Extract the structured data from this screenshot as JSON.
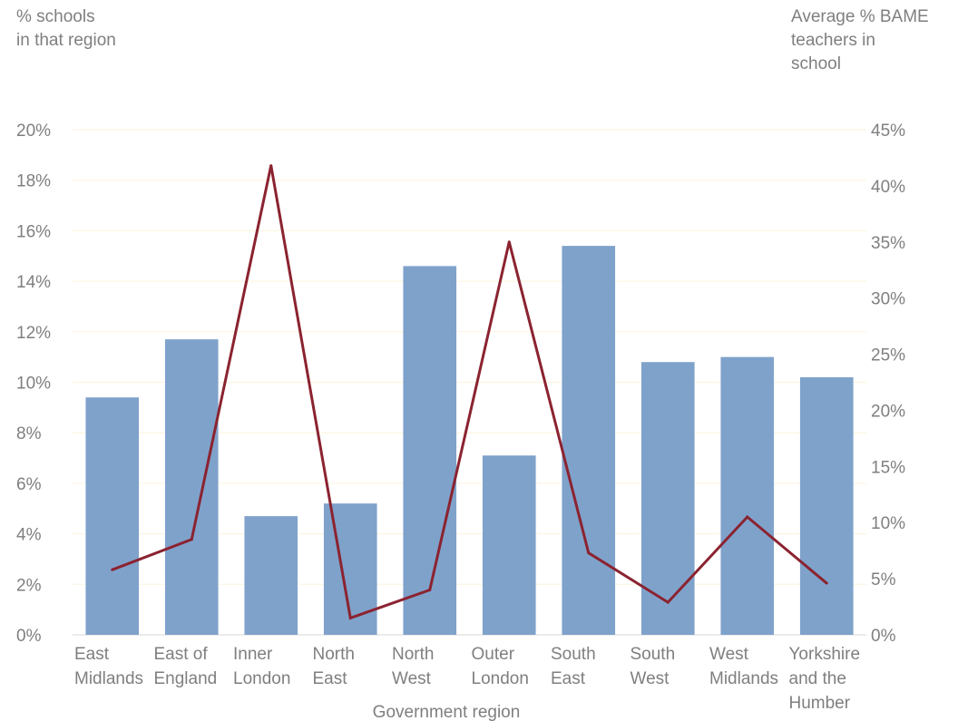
{
  "chart_data": {
    "type": "bar",
    "xlabel": "Government region",
    "ylabel": "% schools\nin that region",
    "y2label": "Average % BAME\nteachers in\nschool",
    "categories": [
      "East\nMidlands",
      "East of\nEngland",
      "Inner\nLondon",
      "North\nEast",
      "North\nWest",
      "Outer\nLondon",
      "South\nEast",
      "South\nWest",
      "West\nMidlands",
      "Yorkshire\nand the\nHumber"
    ],
    "series": [
      {
        "type": "bar",
        "axis": "left",
        "color": "#7fa2cb",
        "values": [
          9.4,
          11.7,
          4.7,
          5.2,
          14.6,
          7.1,
          15.4,
          10.8,
          11.0,
          10.2
        ]
      },
      {
        "type": "line",
        "axis": "right",
        "color": "#8b2330",
        "values": [
          5.8,
          8.5,
          41.8,
          1.5,
          4.0,
          35.0,
          7.3,
          2.9,
          10.5,
          4.6
        ]
      }
    ],
    "ylim": [
      0,
      20
    ],
    "yticks": [
      "0%",
      "2%",
      "4%",
      "6%",
      "8%",
      "10%",
      "12%",
      "14%",
      "16%",
      "18%",
      "20%"
    ],
    "y2lim": [
      0,
      45
    ],
    "y2ticks": [
      "0%",
      "5%",
      "10%",
      "15%",
      "20%",
      "25%",
      "30%",
      "35%",
      "40%",
      "45%"
    ],
    "grid": true,
    "legend": "none"
  }
}
